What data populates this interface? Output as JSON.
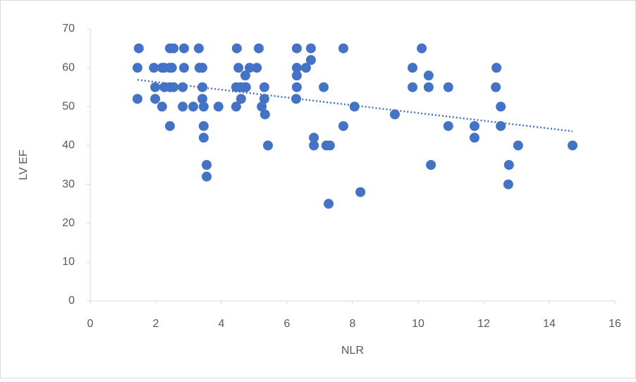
{
  "chart_data": {
    "type": "scatter",
    "x_label": "NLR",
    "y_label": "LV EF",
    "series": [
      {
        "color": "#4472c4",
        "x": [
          1.48,
          1.44,
          1.44,
          1.94,
          1.98,
          1.98,
          2.19,
          2.26,
          2.19,
          2.26,
          2.43,
          2.54,
          2.43,
          2.49,
          2.43,
          2.54,
          2.43,
          2.86,
          2.86,
          2.82,
          2.82,
          3.14,
          3.31,
          3.33,
          3.42,
          3.42,
          3.42,
          3.46,
          3.46,
          3.46,
          3.55,
          3.55,
          3.91,
          4.47,
          4.45,
          4.45,
          4.52,
          4.58,
          4.6,
          4.71,
          4.73,
          4.75,
          4.86,
          5.08,
          5.14,
          5.23,
          5.31,
          5.31,
          5.33,
          5.42,
          6.3,
          6.3,
          6.3,
          6.3,
          6.28,
          6.58,
          6.73,
          6.73,
          6.82,
          6.82,
          7.12,
          7.2,
          7.31,
          7.27,
          7.72,
          7.72,
          8.06,
          8.24,
          9.29,
          9.83,
          9.83,
          10.11,
          10.32,
          10.32,
          10.39,
          10.92,
          10.92,
          11.72,
          11.72,
          12.39,
          12.37,
          12.52,
          12.52,
          12.77,
          12.75,
          13.05,
          14.71
        ],
        "values": [
          65,
          60,
          52,
          60,
          55,
          52,
          60,
          60,
          50,
          55,
          65,
          65,
          60,
          60,
          55,
          55,
          45,
          65,
          60,
          55,
          50,
          50,
          65,
          60,
          60,
          55,
          52,
          50,
          45,
          42,
          35,
          32,
          50,
          65,
          55,
          50,
          60,
          55,
          52,
          55,
          58,
          55,
          60,
          60,
          65,
          50,
          55,
          52,
          48,
          40,
          65,
          60,
          58,
          55,
          52,
          60,
          62,
          65,
          42,
          40,
          55,
          40,
          40,
          25,
          65,
          45,
          50,
          28,
          48,
          60,
          55,
          65,
          58,
          55,
          35,
          55,
          45,
          45,
          42,
          60,
          55,
          50,
          45,
          35,
          30,
          40,
          40
        ]
      }
    ],
    "trendline": true,
    "xlim": [
      0,
      16
    ],
    "xticks": [
      0,
      2,
      4,
      6,
      8,
      10,
      12,
      14,
      16
    ],
    "ylim": [
      0,
      70
    ],
    "yticks": [
      0,
      10,
      20,
      30,
      40,
      50,
      60,
      70
    ]
  }
}
